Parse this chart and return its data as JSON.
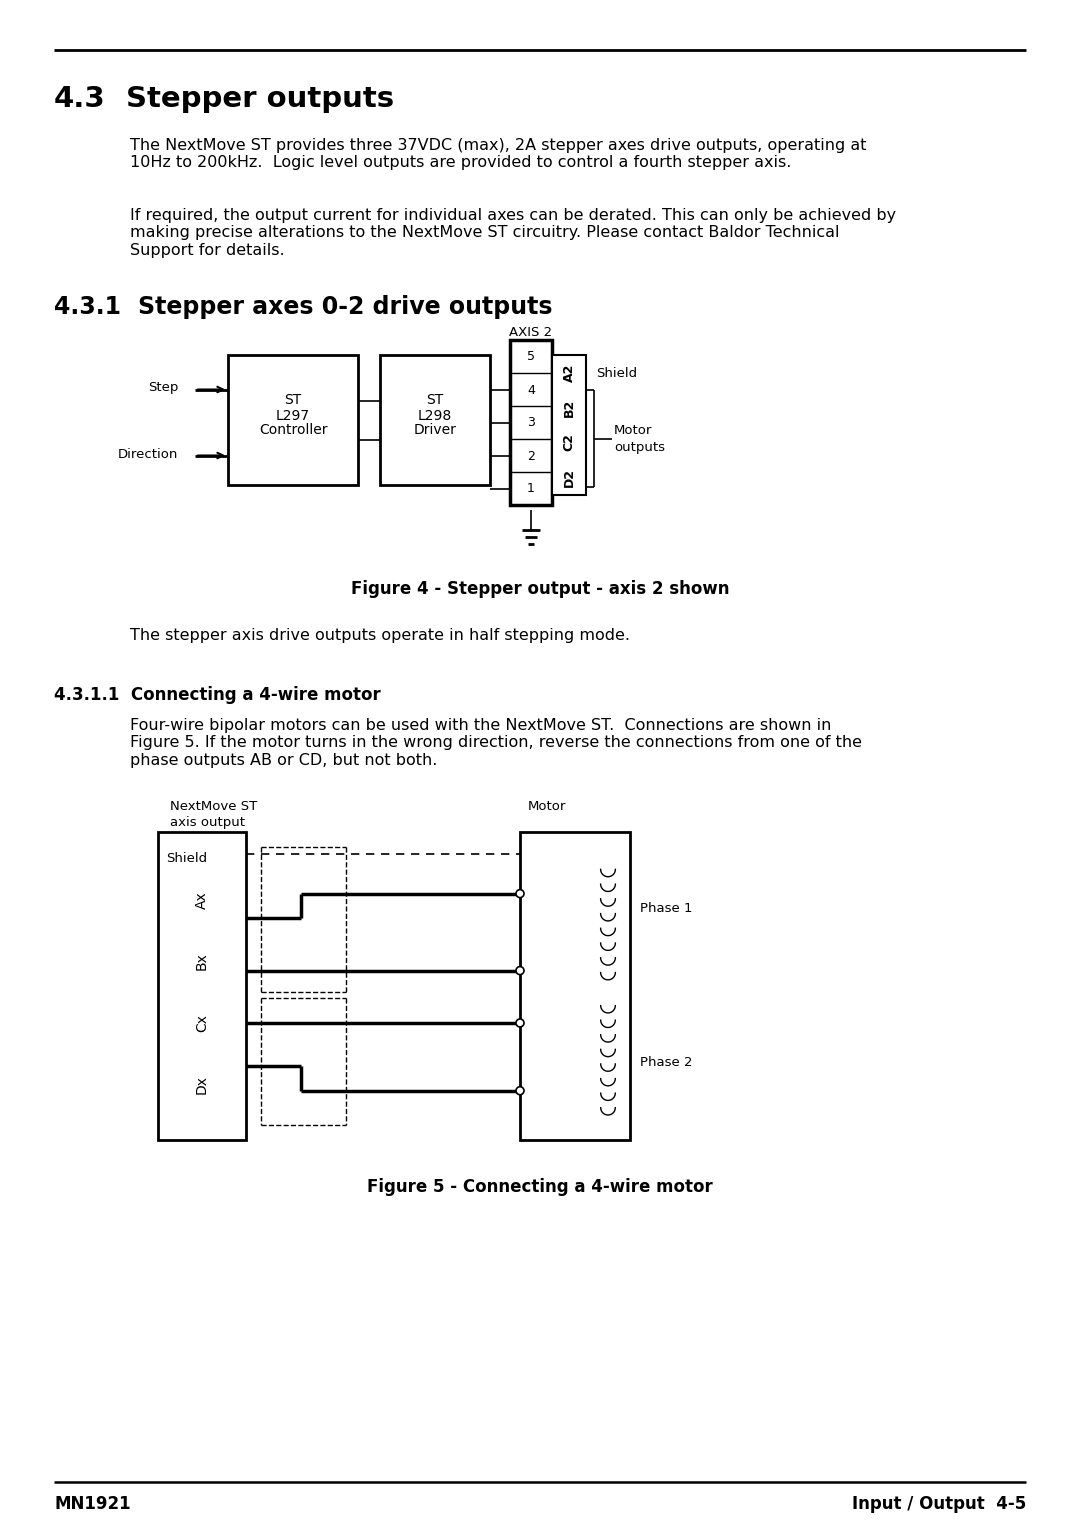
{
  "section_43_title_num": "4.3",
  "section_43_title_text": "Stepper outputs",
  "para1": "The NextMove ST provides three 37VDC (max), 2A stepper axes drive outputs, operating at\n10Hz to 200kHz.  Logic level outputs are provided to control a fourth stepper axis.",
  "para2": "If required, the output current for individual axes can be derated. This can only be achieved by\nmaking precise alterations to the NextMove ST circuitry. Please contact Baldor Technical\nSupport for details.",
  "section_431_title_num": "4.3.1",
  "section_431_title_text": "Stepper axes 0-2 drive outputs",
  "fig4_caption": "Figure 4 - Stepper output - axis 2 shown",
  "para3": "The stepper axis drive outputs operate in half stepping mode.",
  "section_4311_title": "4.3.1.1  Connecting a 4-wire motor",
  "para4": "Four-wire bipolar motors can be used with the NextMove ST.  Connections are shown in\nFigure 5. If the motor turns in the wrong direction, reverse the connections from one of the\nphase outputs AB or CD, but not both.",
  "fig5_caption": "Figure 5 - Connecting a 4-wire motor",
  "footer_left": "MN1921",
  "footer_right": "Input / Output  4-5",
  "bg_color": "#ffffff"
}
